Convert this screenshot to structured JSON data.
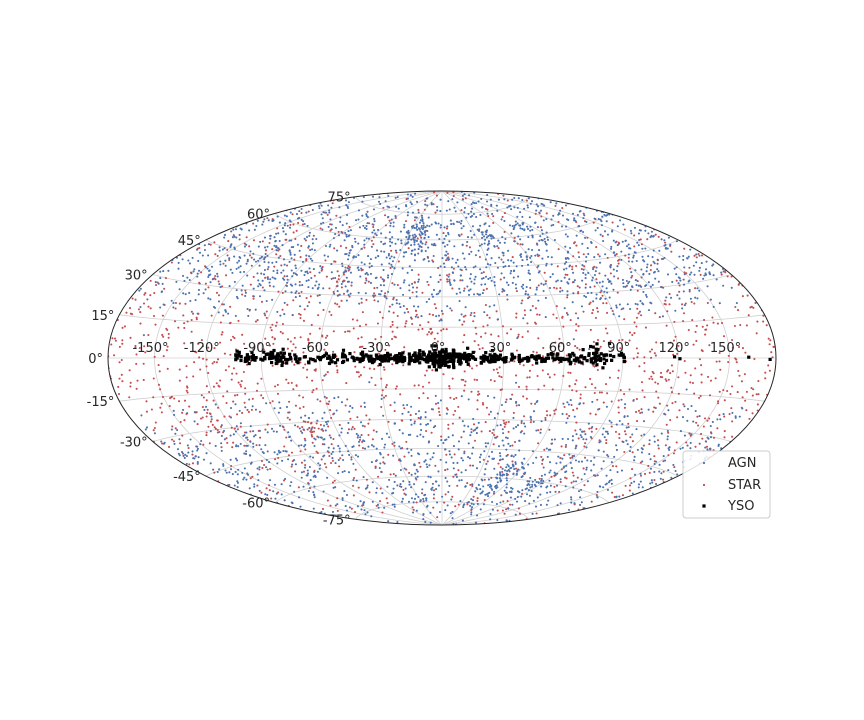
{
  "chart_data": {
    "type": "scatter",
    "projection": "aitoff-hammer (all-sky, Hammer–Aitoff)",
    "title": "",
    "xlabel": "",
    "ylabel": "",
    "xlim": [
      -180,
      180
    ],
    "ylim": [
      -90,
      90
    ],
    "grid": true,
    "legend_position": "bottom-right",
    "x_ticks": [
      "-150°",
      "-120°",
      "-90°",
      "-60°",
      "-30°",
      "0°",
      "30°",
      "60°",
      "90°",
      "120°",
      "150°"
    ],
    "y_ticks": [
      "75°",
      "60°",
      "45°",
      "30°",
      "15°",
      "0°",
      "-15°",
      "-30°",
      "-45°",
      "-60°",
      "-75°"
    ],
    "series": [
      {
        "name": "AGN",
        "color": "#4c72b0",
        "marker": "small dot",
        "approx_count": 2400,
        "distribution": "concentrated at high |latitude| (|b| > ~20°), avoiding the galactic plane",
        "clusters": [
          {
            "lon": -22,
            "lat": 63,
            "spread": 5,
            "n": 60
          },
          {
            "lon": 40,
            "lat": 62,
            "spread": 3,
            "n": 20
          },
          {
            "lon": 80,
            "lat": 65,
            "spread": 3,
            "n": 15
          },
          {
            "lon": 50,
            "lat": -60,
            "spread": 6,
            "n": 60
          },
          {
            "lon": 85,
            "lat": -62,
            "spread": 4,
            "n": 25
          }
        ]
      },
      {
        "name": "STAR",
        "color": "#c44e52",
        "marker": "small dot",
        "approx_count": 1700,
        "distribution": "spread across the whole sky, denser at low latitudes",
        "clusters": [
          {
            "lon": -75,
            "lat": -33,
            "spread": 3,
            "n": 25
          },
          {
            "lon": -130,
            "lat": -25,
            "spread": 3,
            "n": 20
          },
          {
            "lon": -60,
            "lat": 40,
            "spread": 3,
            "n": 15
          },
          {
            "lon": -5,
            "lat": 13,
            "spread": 2,
            "n": 12
          }
        ]
      },
      {
        "name": "YSO",
        "color": "#000000",
        "marker": "square dot",
        "approx_count": 480,
        "distribution": "tightly confined to the galactic plane (|b| < ~3°), from lon ≈ -105° to +92°, densest near lon 0°",
        "lon_range": [
          -105,
          92
        ],
        "lat_spread": 1.2,
        "clusters": [
          {
            "lon": 0,
            "lat": -0.5,
            "spread": 3,
            "n": 80
          },
          {
            "lon": -80,
            "lat": 0,
            "spread": 2,
            "n": 25
          },
          {
            "lon": 78,
            "lat": 1,
            "spread": 3,
            "n": 25
          },
          {
            "lon": -98,
            "lat": 0.5,
            "spread": 1,
            "n": 8
          }
        ]
      }
    ]
  }
}
